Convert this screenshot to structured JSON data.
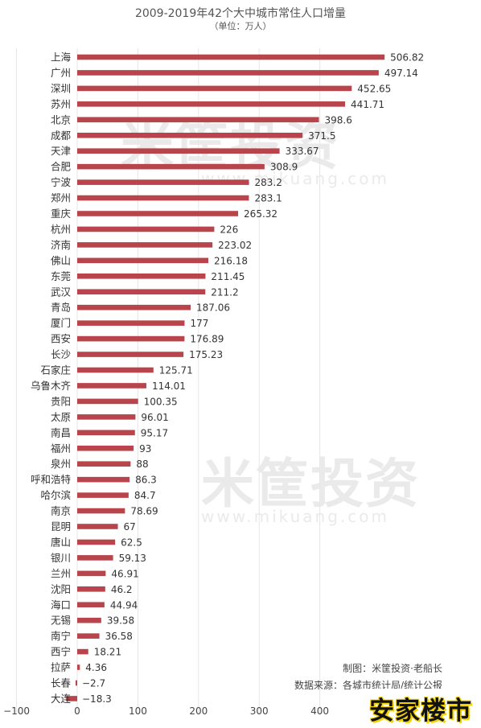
{
  "chart_data": {
    "type": "bar",
    "orientation": "horizontal",
    "title": "2009-2019年42个大中城市常住人口增量",
    "subtitle": "（单位：万人）",
    "bar_color": "#b8454b",
    "grid": true,
    "xlim": [
      -100,
      400
    ],
    "xticks": [
      -100,
      0,
      100,
      200,
      300,
      400
    ],
    "categories": [
      "上海",
      "广州",
      "深圳",
      "苏州",
      "北京",
      "成都",
      "天津",
      "合肥",
      "宁波",
      "郑州",
      "重庆",
      "杭州",
      "济南",
      "佛山",
      "东莞",
      "武汉",
      "青岛",
      "厦门",
      "西安",
      "长沙",
      "石家庄",
      "乌鲁木齐",
      "贵阳",
      "太原",
      "南昌",
      "福州",
      "泉州",
      "呼和浩特",
      "哈尔滨",
      "南京",
      "昆明",
      "唐山",
      "银川",
      "兰州",
      "沈阳",
      "海口",
      "无锡",
      "南宁",
      "西宁",
      "拉萨",
      "长春",
      "大连"
    ],
    "values": [
      506.82,
      497.14,
      452.65,
      441.71,
      398.6,
      371.5,
      333.67,
      308.9,
      283.2,
      283.1,
      265.32,
      226,
      223.02,
      216.18,
      211.45,
      211.2,
      187.06,
      177,
      176.89,
      175.23,
      125.71,
      114.01,
      100.35,
      96.01,
      95.17,
      93,
      88,
      86.3,
      84.7,
      78.69,
      67,
      62.5,
      59.13,
      46.91,
      46.2,
      44.94,
      39.58,
      36.58,
      18.21,
      4.36,
      -2.7,
      -18.3
    ],
    "value_labels": [
      "506.82",
      "497.14",
      "452.65",
      "441.71",
      "398.6",
      "371.5",
      "333.67",
      "308.9",
      "283.2",
      "283.1",
      "265.32",
      "226",
      "223.02",
      "216.18",
      "211.45",
      "211.2",
      "187.06",
      "177",
      "176.89",
      "175.23",
      "125.71",
      "114.01",
      "100.35",
      "96.01",
      "95.17",
      "93",
      "88",
      "86.3",
      "84.7",
      "78.69",
      "67",
      "62.5",
      "59.13",
      "46.91",
      "46.2",
      "44.94",
      "39.58",
      "36.58",
      "18.21",
      "4.36",
      "−2.7",
      "−18.3"
    ]
  },
  "credit": {
    "line1": "制图：米筐投资·老船长",
    "line2": "数据来源：各城市统计局/统计公报"
  },
  "watermark": {
    "text": "米筐投资",
    "url": "www.mikuang.com"
  },
  "badge": {
    "text": "安家楼市",
    "color": "#f5d200"
  }
}
